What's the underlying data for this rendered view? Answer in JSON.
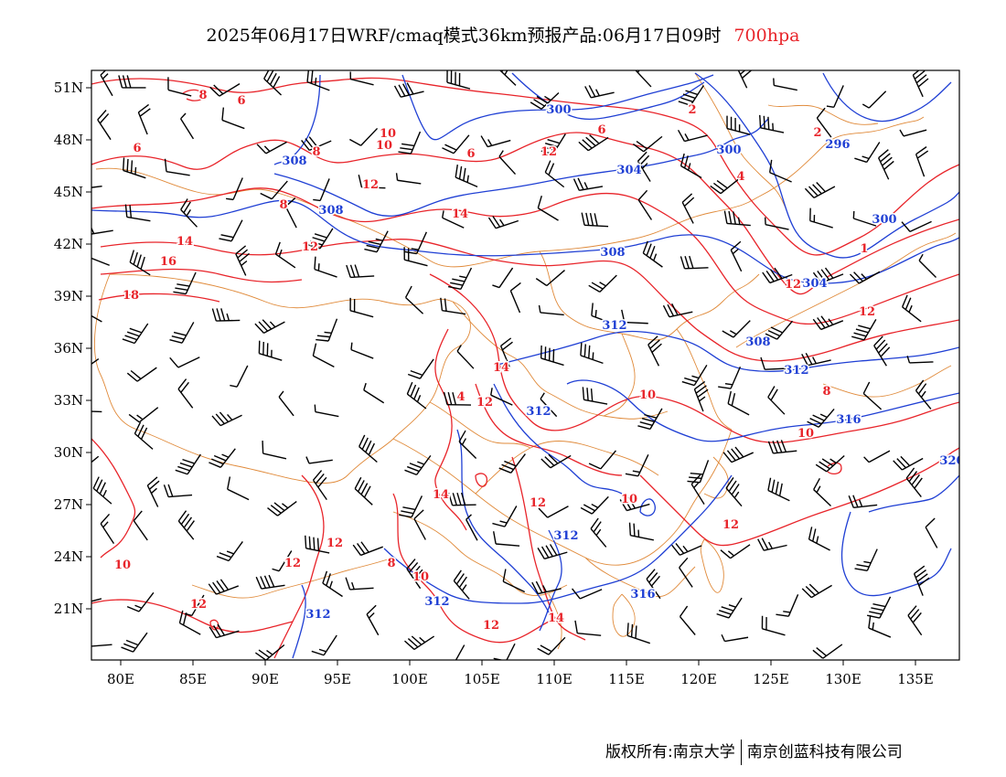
{
  "title": {
    "main": "2025年06月17日WRF/cmaq模式36km预报产品:06月17日09时",
    "level": "700hpa"
  },
  "map": {
    "lon_ticks": [
      "80E",
      "85E",
      "90E",
      "95E",
      "100E",
      "105E",
      "110E",
      "115E",
      "120E",
      "125E",
      "130E",
      "135E"
    ],
    "lat_ticks": [
      "51N",
      "48N",
      "45N",
      "42N",
      "39N",
      "36N",
      "33N",
      "30N",
      "27N",
      "24N",
      "21N"
    ],
    "temperature_labels": [
      "8",
      "6",
      "6",
      "8",
      "10",
      "6",
      "10",
      "12",
      "6",
      "2",
      "2",
      "4",
      "12",
      "14",
      "14",
      "16",
      "18",
      "12",
      "8",
      "14",
      "12",
      "10",
      "12",
      "10",
      "8",
      "10",
      "14",
      "10",
      "12",
      "12",
      "12",
      "12",
      "14",
      "12",
      "12",
      "12",
      "1",
      "10",
      "8",
      "4"
    ],
    "height_labels": [
      "300",
      "296",
      "308",
      "308",
      "304",
      "300",
      "300",
      "308",
      "304",
      "312",
      "308",
      "312",
      "312",
      "316",
      "320",
      "312",
      "316",
      "312",
      "312"
    ],
    "colors": {
      "temperature_contour": "#e8242a",
      "height_contour": "#1f3fd4",
      "boundary": "#e08a3a",
      "wind_barb": "#000000"
    }
  },
  "copyright": {
    "left": "版权所有:南京大学",
    "right": "南京创蓝科技有限公司"
  }
}
